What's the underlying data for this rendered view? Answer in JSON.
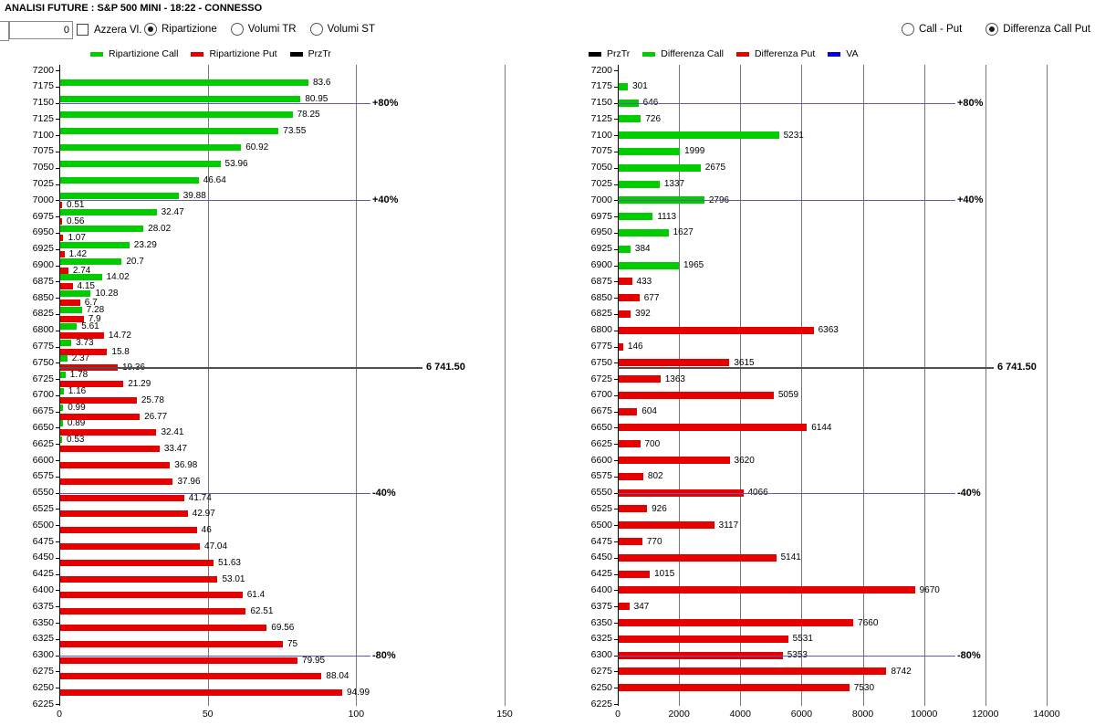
{
  "window": {
    "title": "ANALISI FUTURE : S&P 500 MINI - 18:22 - CONNESSO"
  },
  "toolbar": {
    "input_value": "0",
    "checkbox": {
      "label": "Azzera Vl.",
      "checked": false
    },
    "mode_radios": [
      {
        "label": "Ripartizione",
        "selected": true
      },
      {
        "label": "Volumi TR",
        "selected": false
      },
      {
        "label": "Volumi ST",
        "selected": false
      }
    ],
    "view_radios": [
      {
        "label": "Call - Put",
        "selected": false
      },
      {
        "label": "Differenza Call Put",
        "selected": true
      }
    ]
  },
  "colors": {
    "call_green": "#00cc00",
    "put_red": "#e60000",
    "prztr_black": "#000000",
    "va_blue": "#0000e0",
    "ref_line_blue": "#5e5ea8",
    "price_line_gray": "#4f4f4f",
    "grid_gray": "#757575"
  },
  "legend_left": [
    {
      "name": "Ripartizione Call",
      "color": "call_green"
    },
    {
      "name": "Ripartizione Put",
      "color": "put_red"
    },
    {
      "name": "PrzTr",
      "color": "prztr_black"
    }
  ],
  "legend_right": [
    {
      "name": "PrzTr",
      "color": "prztr_black"
    },
    {
      "name": "Differenza Call",
      "color": "call_green"
    },
    {
      "name": "Differenza Put",
      "color": "put_red"
    },
    {
      "name": "VA",
      "color": "va_blue"
    }
  ],
  "chart_data": [
    {
      "type": "bar",
      "orientation": "horizontal",
      "y_categories": [
        7200,
        7175,
        7150,
        7125,
        7100,
        7075,
        7050,
        7025,
        7000,
        6975,
        6950,
        6925,
        6900,
        6875,
        6850,
        6825,
        6800,
        6775,
        6750,
        6725,
        6700,
        6675,
        6650,
        6625,
        6600,
        6575,
        6550,
        6525,
        6500,
        6475,
        6450,
        6425,
        6400,
        6375,
        6350,
        6325,
        6300,
        6275,
        6250,
        6225
      ],
      "x_ticks": [
        0,
        50,
        100,
        150
      ],
      "xlim": [
        0,
        150
      ],
      "series": [
        {
          "name": "Ripartizione Call",
          "color": "call_green",
          "values": [
            null,
            83.6,
            80.95,
            78.25,
            73.55,
            60.92,
            53.96,
            46.64,
            39.88,
            32.47,
            28.02,
            23.29,
            20.7,
            14.02,
            10.28,
            7.28,
            5.61,
            3.73,
            2.37,
            1.78,
            1.16,
            0.99,
            0.89,
            0.53,
            null,
            null,
            null,
            null,
            null,
            null,
            null,
            null,
            null,
            null,
            null,
            null,
            null,
            null,
            null,
            null
          ]
        },
        {
          "name": "Ripartizione Put",
          "color": "put_red",
          "values": [
            null,
            null,
            null,
            null,
            null,
            null,
            null,
            null,
            0.51,
            0.56,
            1.07,
            1.42,
            2.74,
            4.15,
            6.7,
            7.9,
            14.72,
            15.8,
            19.36,
            21.29,
            25.78,
            26.77,
            32.41,
            33.47,
            36.98,
            37.96,
            41.74,
            42.97,
            46,
            47.04,
            51.63,
            53.01,
            61.4,
            62.51,
            69.56,
            75,
            79.95,
            88.04,
            94.99,
            null
          ]
        }
      ],
      "ref_lines": [
        {
          "label": "+80%",
          "y": 7150
        },
        {
          "label": "+40%",
          "y": 7000
        },
        {
          "label": "-40%",
          "y": 6550
        },
        {
          "label": "-80%",
          "y": 6300
        }
      ],
      "price_line": {
        "label": "6 741.50",
        "y": 6741.5
      }
    },
    {
      "type": "bar",
      "orientation": "horizontal",
      "y_categories": [
        7200,
        7175,
        7150,
        7125,
        7100,
        7075,
        7050,
        7025,
        7000,
        6975,
        6950,
        6925,
        6900,
        6875,
        6850,
        6825,
        6800,
        6775,
        6750,
        6725,
        6700,
        6675,
        6650,
        6625,
        6600,
        6575,
        6550,
        6525,
        6500,
        6475,
        6450,
        6425,
        6400,
        6375,
        6350,
        6325,
        6300,
        6275,
        6250,
        6225
      ],
      "x_ticks": [
        0,
        2000,
        4000,
        6000,
        8000,
        10000,
        12000,
        14000
      ],
      "xlim": [
        0,
        14000
      ],
      "series": [
        {
          "name": "Differenza Call",
          "color": "call_green",
          "values": [
            null,
            301,
            646,
            726,
            5231,
            1999,
            2675,
            1337,
            2796,
            1113,
            1627,
            384,
            1965,
            null,
            null,
            null,
            null,
            null,
            null,
            null,
            null,
            null,
            null,
            null,
            null,
            null,
            null,
            null,
            null,
            null,
            null,
            null,
            null,
            null,
            null,
            null,
            null,
            null,
            null,
            null
          ]
        },
        {
          "name": "Differenza Put",
          "color": "put_red",
          "values": [
            null,
            null,
            null,
            null,
            null,
            null,
            null,
            null,
            null,
            null,
            null,
            null,
            null,
            433,
            677,
            392,
            6363,
            146,
            3615,
            1363,
            5059,
            604,
            6144,
            700,
            3620,
            802,
            4066,
            926,
            3117,
            770,
            5141,
            1015,
            9670,
            347,
            7660,
            5531,
            5353,
            8742,
            7530,
            null
          ]
        }
      ],
      "ref_lines": [
        {
          "label": "+80%",
          "y": 7150
        },
        {
          "label": "+40%",
          "y": 7000
        },
        {
          "label": "-40%",
          "y": 6550
        },
        {
          "label": "-80%",
          "y": 6300
        }
      ],
      "price_line": {
        "label": "6 741.50",
        "y": 6741.5
      }
    }
  ]
}
